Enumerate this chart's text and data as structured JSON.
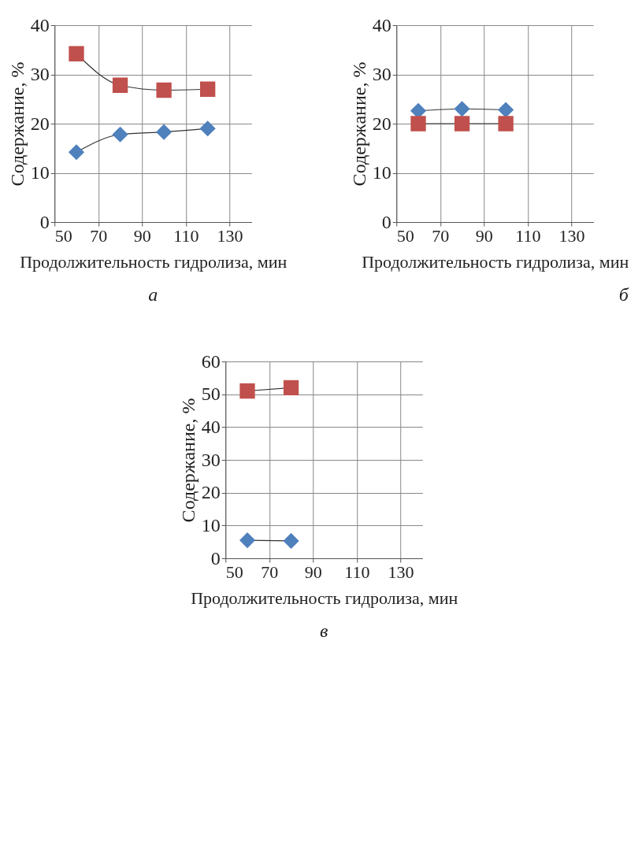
{
  "chart_data": [
    {
      "type": "line",
      "xlabel": "Продолжительность гидролиза, мин",
      "ylabel": "Содержание, %",
      "xlim": [
        50,
        140
      ],
      "xticks": [
        50,
        70,
        90,
        110,
        130
      ],
      "ylim": [
        0,
        40
      ],
      "yticks": [
        0,
        10,
        20,
        30,
        40
      ],
      "grid": true,
      "annotations": [
        "а"
      ],
      "series": [
        {
          "color": "#c0504d",
          "marker": "square",
          "x": [
            60,
            80,
            100,
            120
          ],
          "values": [
            34.2,
            27.8,
            26.8,
            27.0
          ]
        },
        {
          "color": "#4f81bd",
          "marker": "diamond",
          "x": [
            60,
            80,
            100,
            120
          ],
          "values": [
            14.2,
            17.8,
            18.3,
            19.0
          ]
        }
      ]
    },
    {
      "type": "line",
      "xlabel": "Продолжительность гидролиза, мин",
      "ylabel": "Содержание, %",
      "xlim": [
        50,
        140
      ],
      "xticks": [
        50,
        70,
        90,
        110,
        130
      ],
      "ylim": [
        0,
        40
      ],
      "yticks": [
        0,
        10,
        20,
        30,
        40
      ],
      "grid": true,
      "annotations": [
        "б"
      ],
      "series": [
        {
          "color": "#4f81bd",
          "marker": "diamond",
          "x": [
            60,
            80,
            100
          ],
          "values": [
            22.6,
            23.0,
            22.8
          ]
        },
        {
          "color": "#c0504d",
          "marker": "square",
          "x": [
            60,
            80,
            100
          ],
          "values": [
            20,
            20,
            20
          ]
        }
      ]
    },
    {
      "type": "line",
      "xlabel": "Продолжительность гидролиза, мин",
      "ylabel": "Содержание, %",
      "xlim": [
        50,
        140
      ],
      "xticks": [
        50,
        70,
        90,
        110,
        130
      ],
      "ylim": [
        0,
        60
      ],
      "yticks": [
        0,
        10,
        20,
        30,
        40,
        50,
        60
      ],
      "grid": true,
      "annotations": [
        "в"
      ],
      "series": [
        {
          "color": "#c0504d",
          "marker": "square",
          "x": [
            60,
            80
          ],
          "values": [
            51,
            52
          ]
        },
        {
          "color": "#4f81bd",
          "marker": "diamond",
          "x": [
            60,
            80
          ],
          "values": [
            5.5,
            5.3
          ]
        }
      ]
    }
  ]
}
